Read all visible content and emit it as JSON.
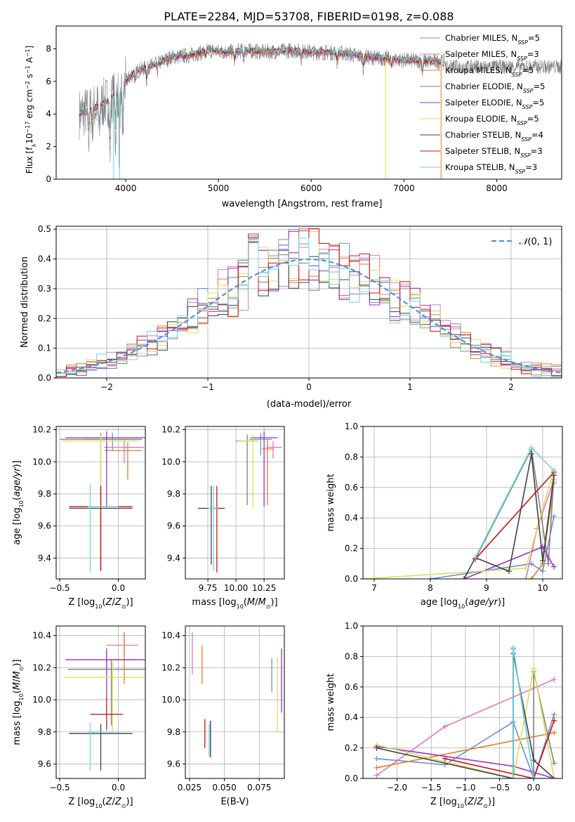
{
  "figure": {
    "title": "PLATE=2284, MJD=53708, FIBERID=0198, z=0.088"
  },
  "colors": {
    "Chabrier MILES": "#6a8fd8",
    "Salpeter MILES": "#e377c2",
    "Kroupa MILES": "#e67e22",
    "Chabrier ELODIE": "#7f7f7f",
    "Salpeter ELODIE": "#9b30c8",
    "Kroupa ELODIE": "#d4e157",
    "Chabrier STELIB": "#404040",
    "Salpeter STELIB": "#cc1111",
    "Kroupa STELIB": "#6fd6e0",
    "gauss": "#5b8ede"
  },
  "chart_data": [
    {
      "id": "spectrum",
      "type": "line",
      "xlabel": "wavelength [Angstrom, rest frame]",
      "ylabel": "Flux [f_λ 10^-17 erg cm^-2 s^-1 A^-1]",
      "xlim": [
        3250,
        8700
      ],
      "ylim": [
        0,
        9.4
      ],
      "xticks": [
        4000,
        5000,
        6000,
        7000,
        8000
      ],
      "yticks": [
        0,
        2,
        4,
        6,
        8
      ],
      "legend_position": "right",
      "legend": [
        {
          "name": "Chabrier MILES",
          "label": "Chabrier MILES, N",
          "sub": "SSP",
          "n": "=5"
        },
        {
          "name": "Salpeter MILES",
          "label": "Salpeter MILES, N",
          "sub": "SSP",
          "n": "=3"
        },
        {
          "name": "Kroupa MILES",
          "label": "Kroupa MILES, N",
          "sub": "SSP",
          "n": "=5"
        },
        {
          "name": "Chabrier ELODIE",
          "label": "Chabrier ELODIE, N",
          "sub": "SSP",
          "n": "=5"
        },
        {
          "name": "Salpeter ELODIE",
          "label": "Salpeter ELODIE, N",
          "sub": "SSP",
          "n": "=5"
        },
        {
          "name": "Kroupa ELODIE",
          "label": "Kroupa ELODIE, N",
          "sub": "SSP",
          "n": "=5"
        },
        {
          "name": "Chabrier STELIB",
          "label": "Chabrier STELIB, N",
          "sub": "SSP",
          "n": "=4"
        },
        {
          "name": "Salpeter STELIB",
          "label": "Salpeter STELIB, N",
          "sub": "SSP",
          "n": "=3"
        },
        {
          "name": "Kroupa STELIB",
          "label": "Kroupa STELIB, N",
          "sub": "SSP",
          "n": "=3"
        }
      ],
      "continuum": [
        [
          3500,
          4.0
        ],
        [
          3650,
          4.3
        ],
        [
          3800,
          4.8
        ],
        [
          3950,
          5.4
        ],
        [
          4000,
          6.0
        ],
        [
          4100,
          6.6
        ],
        [
          4300,
          7.0
        ],
        [
          4500,
          7.5
        ],
        [
          4700,
          7.6
        ],
        [
          4900,
          7.9
        ],
        [
          5100,
          7.8
        ],
        [
          5300,
          7.9
        ],
        [
          5500,
          7.8
        ],
        [
          5800,
          7.9
        ],
        [
          6000,
          7.8
        ],
        [
          6300,
          7.75
        ],
        [
          6600,
          7.5
        ],
        [
          7000,
          7.3
        ],
        [
          7400,
          7.2
        ]
      ],
      "model_x_range": [
        3500,
        7400
      ],
      "data_x_range": [
        3500,
        8700
      ],
      "model_x_range_short": [
        3500,
        7400
      ],
      "dips": [
        [
          3600,
          1.5
        ],
        [
          3640,
          1.0
        ],
        [
          3715,
          2.0
        ],
        [
          3830,
          3.5
        ],
        [
          3890,
          2.8
        ],
        [
          3933,
          4.0
        ],
        [
          3969,
          3.3
        ],
        [
          4102,
          0.7
        ],
        [
          4227,
          0.9
        ],
        [
          4340,
          0.5
        ],
        [
          4861,
          0.5
        ],
        [
          5175,
          0.7
        ],
        [
          5270,
          0.5
        ],
        [
          5890,
          0.5
        ],
        [
          6280,
          0.6
        ],
        [
          6563,
          0.8
        ],
        [
          6867,
          0.5
        ],
        [
          7200,
          0.8
        ]
      ],
      "glitches": [
        [
          3870,
          0
        ],
        [
          3935,
          0
        ],
        [
          6800,
          0
        ],
        [
          7400,
          0
        ]
      ]
    },
    {
      "id": "residuals",
      "type": "histogram",
      "xlabel": "(data-model)/error",
      "ylabel": "Normed distribution",
      "xlim": [
        -2.5,
        2.5
      ],
      "ylim": [
        0,
        0.51
      ],
      "xticks": [
        -2,
        -1,
        0,
        1,
        2
      ],
      "yticks": [
        0.0,
        0.1,
        0.2,
        0.3,
        0.4,
        0.5
      ],
      "grid": true,
      "legend_position": "top-right",
      "legend": [
        {
          "name": "gauss",
          "label": "N(0, 1)"
        }
      ],
      "bin_width": 0.1
    },
    {
      "id": "age_vs_Z",
      "type": "scatter",
      "xlabel": "Z [log10(Z/Z⊙)]",
      "ylabel": "age [log10(age/yr)]",
      "xlim": [
        -0.53,
        0.23
      ],
      "ylim": [
        9.27,
        10.22
      ],
      "xticks": [
        -0.5,
        0.0
      ],
      "yticks": [
        9.4,
        9.6,
        9.8,
        10.0,
        10.2
      ],
      "grid": true,
      "points": [
        {
          "name": "Chabrier MILES",
          "x": -0.05,
          "y": 10.14,
          "xerr": 0.25,
          "yerr": [
            0.07,
            0.04
          ]
        },
        {
          "name": "Salpeter MILES",
          "x": 0.05,
          "y": 10.09,
          "xerr": [
            0.17,
            0.17
          ],
          "yerr": [
            0.1,
            0.05
          ]
        },
        {
          "name": "Kroupa MILES",
          "x": 0.08,
          "y": 10.07,
          "xerr": [
            0.2,
            0.12
          ],
          "yerr": [
            0.18,
            0.05
          ]
        },
        {
          "name": "Chabrier ELODIE",
          "x": -0.15,
          "y": 10.14,
          "xerr": 0.35,
          "yerr": [
            0.28,
            0.04
          ]
        },
        {
          "name": "Salpeter ELODIE",
          "x": -0.1,
          "y": 10.15,
          "xerr": 0.35,
          "yerr": [
            0.43,
            0.04
          ]
        },
        {
          "name": "Kroupa ELODIE",
          "x": -0.15,
          "y": 10.13,
          "xerr": 0.33,
          "yerr": [
            0.3,
            0.04
          ]
        },
        {
          "name": "Chabrier STELIB",
          "x": -0.15,
          "y": 9.71,
          "xerr": 0.27,
          "yerr": [
            0.39,
            0.14
          ]
        },
        {
          "name": "Salpeter STELIB",
          "x": -0.15,
          "y": 9.72,
          "xerr": 0.27,
          "yerr": [
            0.4,
            0.13
          ]
        },
        {
          "name": "Kroupa STELIB",
          "x": -0.24,
          "y": 9.72,
          "xerr": [
            0.02,
            0.24
          ],
          "yerr": [
            0.41,
            0.14
          ]
        }
      ]
    },
    {
      "id": "age_vs_mass",
      "type": "scatter",
      "xlabel": "mass [log10(M/M⊙)]",
      "ylabel": "",
      "xlim": [
        9.55,
        10.43
      ],
      "ylim": [
        9.27,
        10.22
      ],
      "xticks": [
        9.75,
        10.0,
        10.25
      ],
      "xticklabels": [
        "9.75",
        "10.00",
        "10.25"
      ],
      "yticks": [
        9.4,
        9.6,
        9.8,
        10.0,
        10.2
      ],
      "grid": true,
      "points": [
        {
          "name": "Chabrier MILES",
          "x": 10.22,
          "y": 10.14,
          "xerr": 0.1,
          "yerr": [
            0.1,
            0.04
          ]
        },
        {
          "name": "Salpeter MILES",
          "x": 10.33,
          "y": 10.09,
          "xerr": [
            0.06,
            0.08
          ],
          "yerr": [
            0.07,
            0.04
          ]
        },
        {
          "name": "Kroupa MILES",
          "x": 10.28,
          "y": 10.08,
          "xerr": 0.05,
          "yerr": [
            0.35,
            0.06
          ]
        },
        {
          "name": "Chabrier ELODIE",
          "x": 10.1,
          "y": 10.13,
          "xerr": 0.1,
          "yerr": [
            0.4,
            0.04
          ]
        },
        {
          "name": "Salpeter ELODIE",
          "x": 10.25,
          "y": 10.15,
          "xerr": 0.12,
          "yerr": [
            0.43,
            0.04
          ]
        },
        {
          "name": "Kroupa ELODIE",
          "x": 10.15,
          "y": 10.13,
          "xerr": [
            0.14,
            0.05
          ],
          "yerr": [
            0.42,
            0.04
          ]
        },
        {
          "name": "Chabrier STELIB",
          "x": 9.78,
          "y": 9.71,
          "xerr": 0.12,
          "yerr": [
            0.35,
            0.14
          ]
        },
        {
          "name": "Salpeter STELIB",
          "x": 9.83,
          "y": 9.71,
          "xerr": [
            0.05,
            0.05
          ],
          "yerr": [
            0.4,
            0.14
          ]
        },
        {
          "name": "Kroupa STELIB",
          "x": 9.8,
          "y": 9.71,
          "xerr": [
            0.05,
            0.04
          ],
          "yerr": [
            0.39,
            0.14
          ]
        }
      ]
    },
    {
      "id": "weight_vs_age",
      "type": "line",
      "xlabel": "age [log10(age/yr)]",
      "ylabel": "mass weight",
      "xlim": [
        6.8,
        10.35
      ],
      "ylim": [
        0,
        1.0
      ],
      "xticks": [
        7,
        8,
        9,
        10
      ],
      "yticks": [
        0.0,
        0.2,
        0.4,
        0.6,
        0.8,
        1.0
      ],
      "grid": true,
      "series": [
        {
          "name": "Chabrier MILES",
          "x": [
            8.0,
            9.8,
            10.0,
            10.2
          ],
          "y": [
            0.0,
            0.1,
            0.05,
            0.41
          ]
        },
        {
          "name": "Salpeter MILES",
          "x": [
            9.7,
            9.9,
            10.2
          ],
          "y": [
            0.0,
            0.33,
            0.65
          ]
        },
        {
          "name": "Kroupa MILES",
          "x": [
            9.8,
            10.0,
            10.2
          ],
          "y": [
            0.0,
            0.1,
            0.63
          ]
        },
        {
          "name": "Chabrier ELODIE",
          "x": [
            8.8,
            9.8,
            10.1,
            10.2
          ],
          "y": [
            0.13,
            0.85,
            0.1,
            0.68
          ]
        },
        {
          "name": "Salpeter ELODIE",
          "x": [
            8.6,
            10.0,
            10.2
          ],
          "y": [
            0.0,
            0.21,
            0.08
          ]
        },
        {
          "name": "Kroupa ELODIE",
          "x": [
            6.8,
            9.7,
            10.2
          ],
          "y": [
            0.0,
            0.07,
            0.72
          ]
        },
        {
          "name": "Chabrier STELIB",
          "x": [
            8.6,
            8.8,
            9.4,
            9.8,
            10.0,
            10.2
          ],
          "y": [
            0.0,
            0.14,
            0.05,
            0.82,
            0.12,
            0.68
          ]
        },
        {
          "name": "Salpeter STELIB",
          "x": [
            8.8,
            10.2
          ],
          "y": [
            0.13,
            0.7
          ]
        },
        {
          "name": "Kroupa STELIB",
          "x": [
            8.8,
            9.8,
            10.2
          ],
          "y": [
            0.14,
            0.86,
            0.71
          ]
        }
      ]
    },
    {
      "id": "mass_vs_Z",
      "type": "scatter",
      "xlabel": "Z [log10(Z/Z⊙)]",
      "ylabel": "mass [log10(M/M⊙)]",
      "xlim": [
        -0.53,
        0.23
      ],
      "ylim": [
        9.51,
        10.46
      ],
      "xticks": [
        -0.5,
        0.0
      ],
      "yticks": [
        9.6,
        9.8,
        10.0,
        10.2,
        10.4
      ],
      "grid": true,
      "points": [
        {
          "name": "Chabrier MILES",
          "x": -0.1,
          "y": 10.25,
          "xerr": 0.35,
          "yerr": [
            0.05,
            0.05
          ]
        },
        {
          "name": "Salpeter MILES",
          "x": 0.05,
          "y": 10.34,
          "xerr": [
            0.15,
            0.12
          ],
          "yerr": [
            0.07,
            0.08
          ]
        },
        {
          "name": "Kroupa MILES",
          "x": 0.05,
          "y": 10.25,
          "xerr": [
            0.15,
            0.1
          ],
          "yerr": [
            0.15,
            0.17
          ]
        },
        {
          "name": "Chabrier ELODIE",
          "x": -0.06,
          "y": 10.19,
          "xerr": 0.37,
          "yerr": [
            0.35,
            0.06
          ]
        },
        {
          "name": "Salpeter ELODIE",
          "x": -0.1,
          "y": 10.25,
          "xerr": 0.35,
          "yerr": [
            0.25,
            0.07
          ]
        },
        {
          "name": "Kroupa ELODIE",
          "x": -0.05,
          "y": 10.14,
          "xerr": 0.42,
          "yerr": [
            0.34,
            0.1
          ]
        },
        {
          "name": "Chabrier STELIB",
          "x": -0.15,
          "y": 9.79,
          "xerr": 0.27,
          "yerr": [
            0.23,
            0.06
          ]
        },
        {
          "name": "Salpeter STELIB",
          "x": -0.1,
          "y": 9.91,
          "xerr": [
            0.14,
            0.14
          ],
          "yerr": [
            0.1,
            0.1
          ]
        },
        {
          "name": "Kroupa STELIB",
          "x": -0.24,
          "y": 9.8,
          "xerr": [
            0.02,
            0.26
          ],
          "yerr": [
            0.24,
            0.06
          ]
        }
      ]
    },
    {
      "id": "mass_vs_ebv",
      "type": "scatter",
      "xlabel": "E(B-V)",
      "ylabel": "",
      "xlim": [
        0.022,
        0.093
      ],
      "ylim": [
        9.51,
        10.46
      ],
      "xticks": [
        0.025,
        0.05,
        0.075
      ],
      "xticklabels": [
        "0.025",
        "0.050",
        "0.075"
      ],
      "yticks": [
        9.6,
        9.8,
        10.0,
        10.2,
        10.4
      ],
      "grid": true,
      "points": [
        {
          "name": "Chabrier MILES",
          "x": 0.084,
          "y": 10.16,
          "yerr": [
            0.11,
            0.1
          ]
        },
        {
          "name": "Salpeter MILES",
          "x": 0.027,
          "y": 10.29,
          "yerr": [
            0.13,
            0.13
          ]
        },
        {
          "name": "Kroupa MILES",
          "x": 0.034,
          "y": 10.22,
          "yerr": [
            0.12,
            0.12
          ]
        },
        {
          "name": "Chabrier ELODIE",
          "x": 0.04,
          "y": 9.76,
          "yerr": [
            0.1,
            0.11
          ]
        },
        {
          "name": "Salpeter ELODIE",
          "x": 0.091,
          "y": 10.12,
          "yerr": [
            0.2,
            0.2
          ]
        },
        {
          "name": "Kroupa ELODIE",
          "x": 0.088,
          "y": 10.03,
          "yerr": [
            0.23,
            0.23
          ]
        },
        {
          "name": "Chabrier STELIB",
          "x": 0.04,
          "y": 9.76,
          "yerr": [
            0.12,
            0.11
          ]
        },
        {
          "name": "Salpeter STELIB",
          "x": 0.036,
          "y": 9.8,
          "yerr": [
            0.1,
            0.08
          ]
        },
        {
          "name": "Kroupa STELIB",
          "x": 0.039,
          "y": 9.75,
          "yerr": [
            0.1,
            0.1
          ]
        }
      ]
    },
    {
      "id": "weight_vs_Z",
      "type": "line",
      "xlabel": "Z [log10(Z/Z⊙)]",
      "ylabel": "mass weight",
      "xlim": [
        -2.5,
        0.42
      ],
      "ylim": [
        0,
        1.0
      ],
      "xticks": [
        -2.0,
        -1.5,
        -1.0,
        -0.5,
        0.0
      ],
      "yticks": [
        0.0,
        0.2,
        0.4,
        0.6,
        0.8,
        1.0
      ],
      "grid": true,
      "series": [
        {
          "name": "Chabrier MILES",
          "x": [
            -2.3,
            -1.3,
            -0.3,
            0.0,
            0.3
          ],
          "y": [
            0.13,
            0.09,
            0.37,
            0.0,
            0.42
          ]
        },
        {
          "name": "Salpeter MILES",
          "x": [
            -2.3,
            -1.3,
            0.3
          ],
          "y": [
            0.02,
            0.34,
            0.65
          ]
        },
        {
          "name": "Kroupa MILES",
          "x": [
            -2.3,
            0.3
          ],
          "y": [
            0.07,
            0.3
          ]
        },
        {
          "name": "Chabrier ELODIE",
          "x": [
            -0.3,
            -0.3,
            0.0,
            0.0,
            0.3
          ],
          "y": [
            0.0,
            0.85,
            0.0,
            0.7,
            0.1
          ]
        },
        {
          "name": "Salpeter ELODIE",
          "x": [
            -2.3,
            -0.3,
            0.3
          ],
          "y": [
            0.21,
            0.08,
            0.0
          ]
        },
        {
          "name": "Kroupa ELODIE",
          "x": [
            -2.3,
            -0.3,
            0.0,
            0.3
          ],
          "y": [
            0.22,
            0.0,
            0.72,
            0.0
          ]
        },
        {
          "name": "Chabrier STELIB",
          "x": [
            -2.3,
            -0.3,
            -0.3,
            0.0,
            0.3
          ],
          "y": [
            0.2,
            0.0,
            0.82,
            0.12,
            0.0
          ]
        },
        {
          "name": "Salpeter STELIB",
          "x": [
            -1.3,
            0.0,
            0.3
          ],
          "y": [
            0.13,
            0.0,
            0.38
          ]
        },
        {
          "name": "Kroupa STELIB",
          "x": [
            -0.3,
            -0.3,
            0.0,
            0.3
          ],
          "y": [
            0.0,
            0.86,
            0.0,
            0.0
          ]
        }
      ]
    }
  ]
}
